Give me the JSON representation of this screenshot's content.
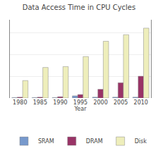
{
  "chart_data": {
    "type": "bar",
    "title": "Data Access Time in CPU Cycles",
    "x_label": "Year",
    "categories": [
      "1980",
      "1985",
      "1990",
      "1995",
      "2000",
      "2005",
      "2010"
    ],
    "series": [
      {
        "name": "SRAM",
        "color": "#7799CC",
        "values": [
          1,
          1,
          1,
          5,
          2,
          2,
          2
        ]
      },
      {
        "name": "DRAM",
        "color": "#993366",
        "values": [
          2,
          2,
          3,
          8,
          20,
          35,
          50
        ]
      },
      {
        "name": "Disk",
        "color": "#EEEEBB",
        "values": [
          40,
          70,
          72,
          95,
          130,
          145,
          160
        ]
      }
    ],
    "ylim": [
      0,
      179.2
    ],
    "yticks": [
      0,
      50,
      100,
      150
    ],
    "grid": true,
    "tick_labels": "x",
    "legend": "bottom"
  }
}
